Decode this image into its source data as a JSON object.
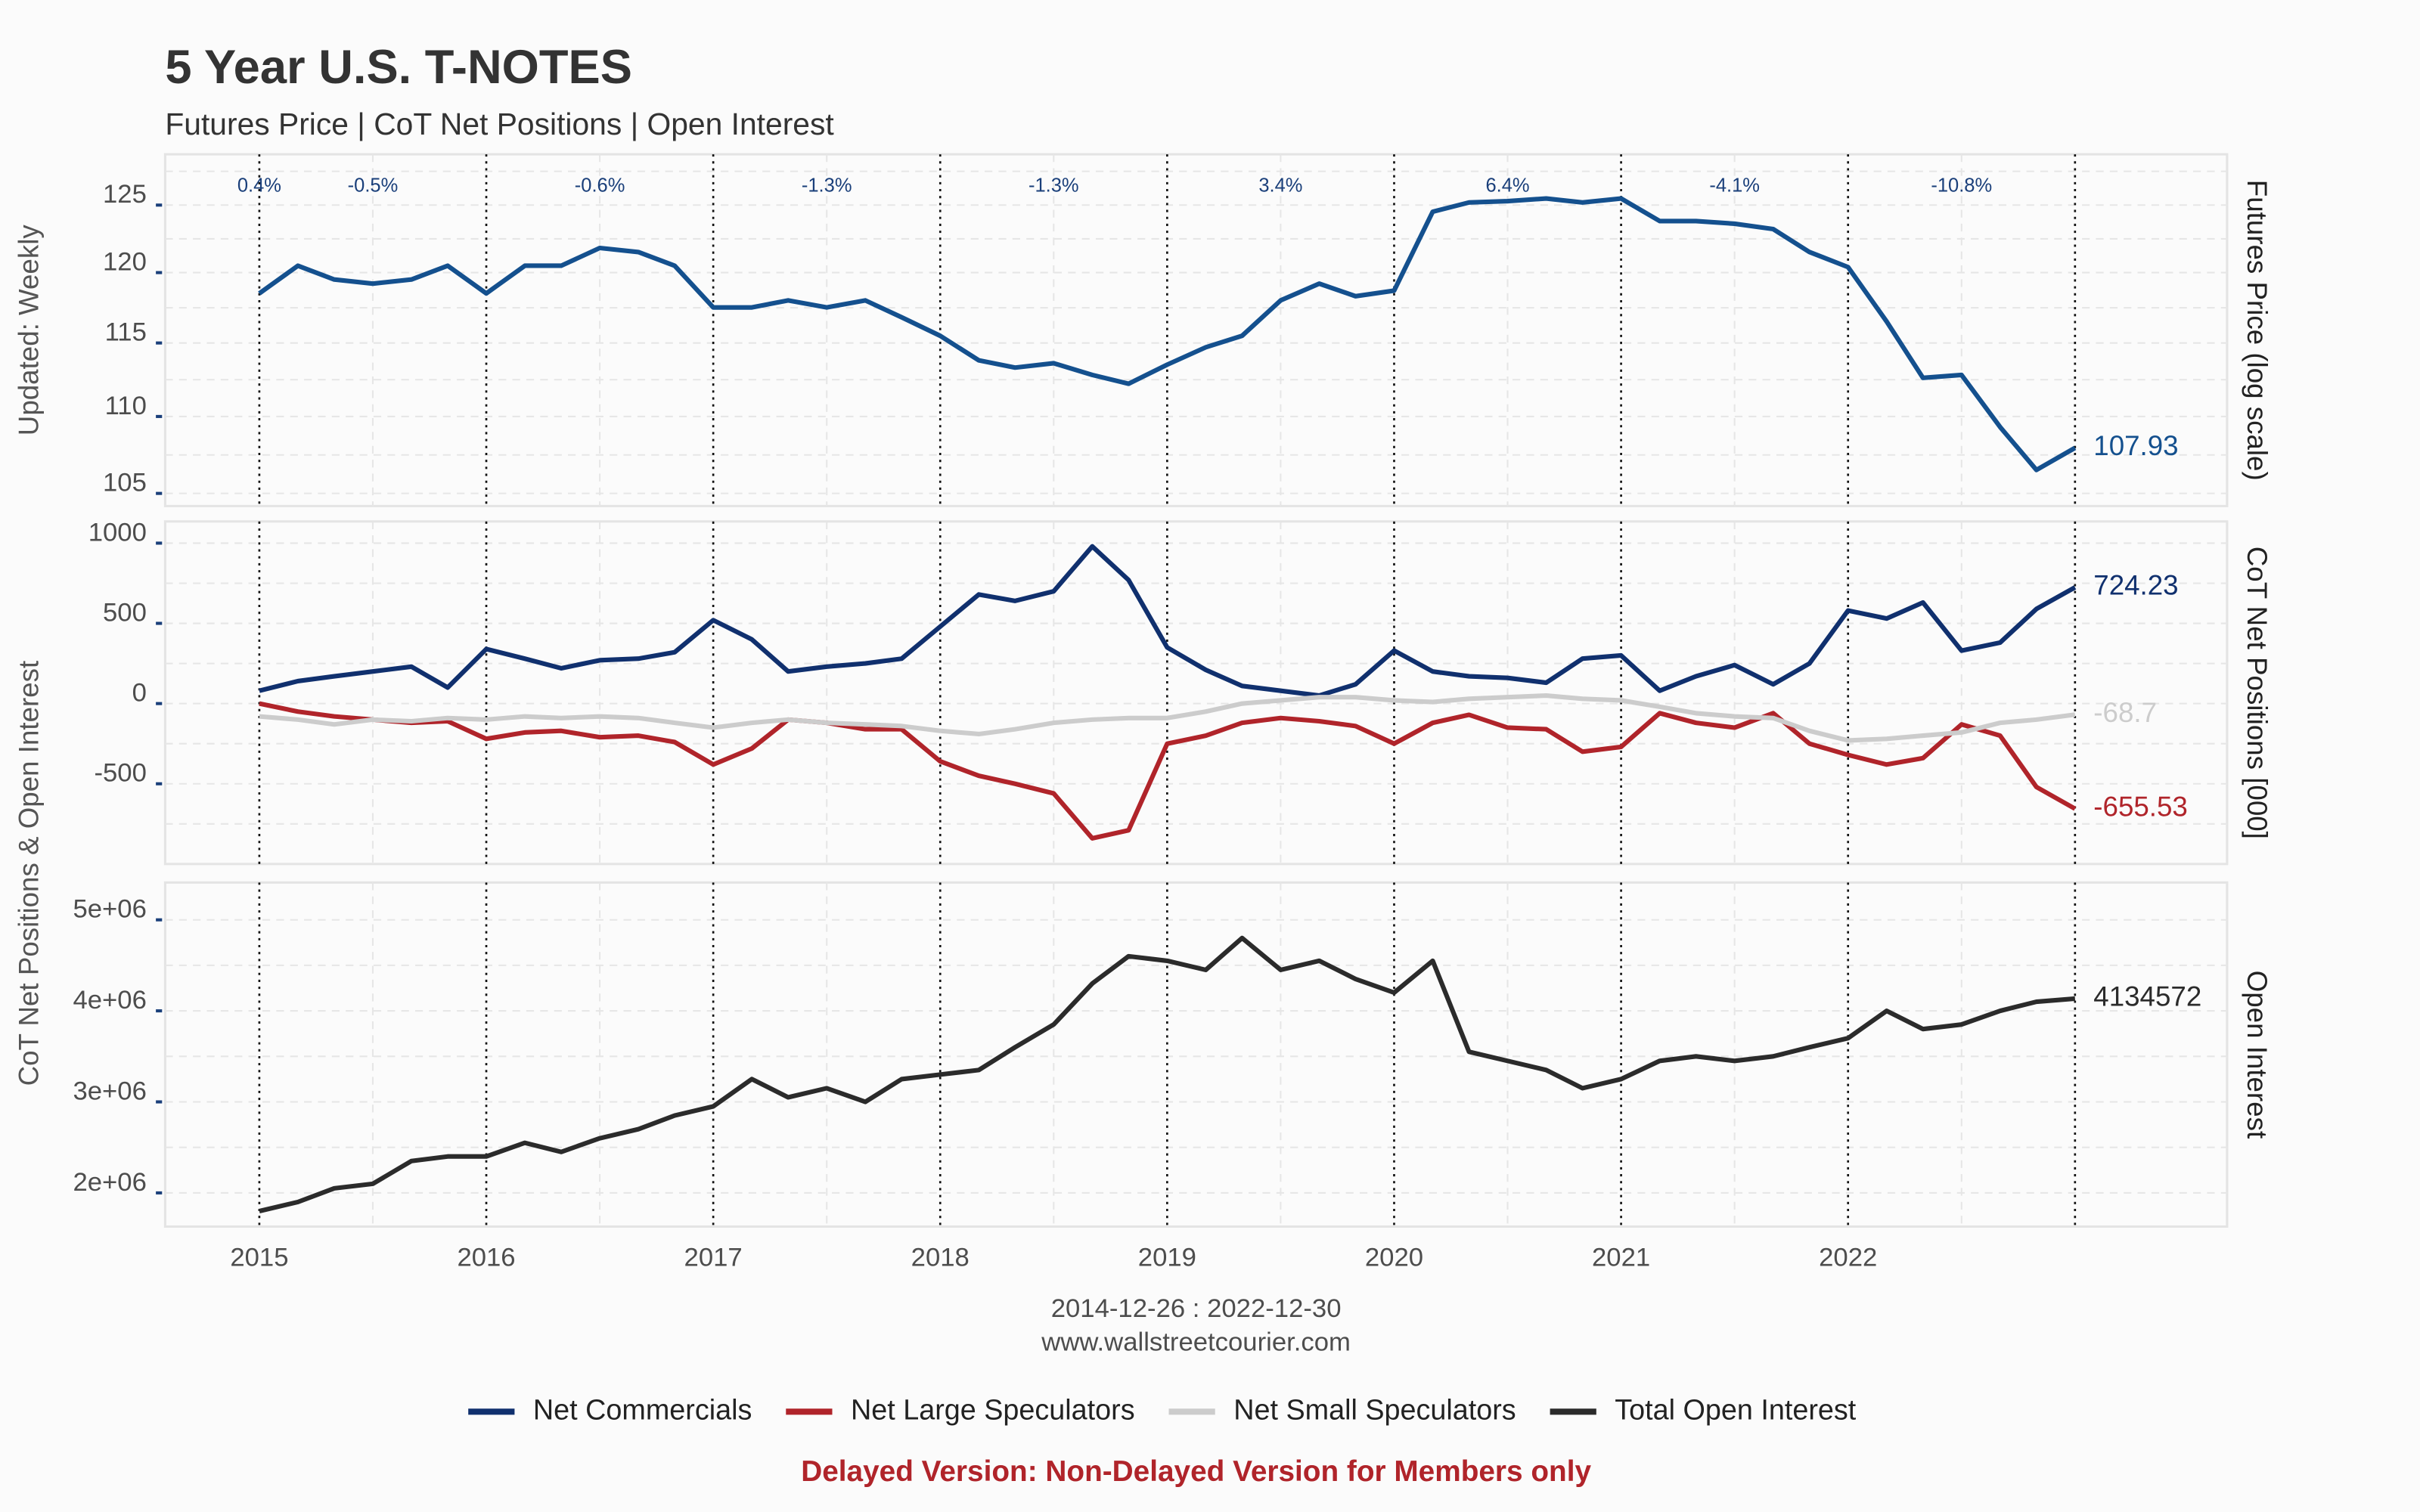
{
  "title": "5 Year U.S. T-NOTES",
  "subtitle": "Futures Price | CoT Net Positions | Open Interest",
  "side_labels": [
    "Updated: Weekly",
    "CoT Net Positions & Open Interest"
  ],
  "date_range": "2014-12-26 : 2022-12-30",
  "source": "www.wallstreetcourier.com",
  "notice": "Delayed Version: Non-Delayed Version for Members only",
  "chart_data": [
    {
      "type": "line",
      "y_label": "Futures Price (log scale)",
      "log_scale": true,
      "grid": true,
      "x": [
        2015,
        2015.17,
        2015.33,
        2015.5,
        2015.67,
        2015.83,
        2016,
        2016.17,
        2016.33,
        2016.5,
        2016.67,
        2016.83,
        2017,
        2017.17,
        2017.33,
        2017.5,
        2017.67,
        2017.83,
        2018,
        2018.17,
        2018.33,
        2018.5,
        2018.67,
        2018.83,
        2019,
        2019.17,
        2019.33,
        2019.5,
        2019.67,
        2019.83,
        2020,
        2020.17,
        2020.33,
        2020.5,
        2020.67,
        2020.83,
        2021,
        2021.17,
        2021.33,
        2021.5,
        2021.67,
        2021.83,
        2022,
        2022.17,
        2022.33,
        2022.5,
        2022.67,
        2022.83,
        2023
      ],
      "xlim": [
        2014.585,
        2023.67
      ],
      "ylim": [
        104.2,
        128.9
      ],
      "yticks": [
        105,
        110,
        115,
        120,
        125
      ],
      "annotations": [
        {
          "x": 2015,
          "text": "0.4%"
        },
        {
          "x": 2015.5,
          "text": "-0.5%"
        },
        {
          "x": 2016.5,
          "text": "-0.6%"
        },
        {
          "x": 2017.5,
          "text": "-1.3%"
        },
        {
          "x": 2018.5,
          "text": "-1.3%"
        },
        {
          "x": 2019.5,
          "text": "3.4%"
        },
        {
          "x": 2020.5,
          "text": "6.4%"
        },
        {
          "x": 2021.5,
          "text": "-4.1%"
        },
        {
          "x": 2022.5,
          "text": "-10.8%"
        }
      ],
      "series": [
        {
          "color": "#14508e",
          "values": [
            118.5,
            120.5,
            119.5,
            119.2,
            119.5,
            120.5,
            118.5,
            120.5,
            120.5,
            121.8,
            121.5,
            120.5,
            117.5,
            117.5,
            118,
            117.5,
            118,
            116.8,
            115.5,
            113.8,
            113.3,
            113.6,
            112.8,
            112.2,
            113.5,
            114.7,
            115.5,
            118,
            119.2,
            118.3,
            118.7,
            124.5,
            125.2,
            125.3,
            125.5,
            125.2,
            125.5,
            123.8,
            123.8,
            123.6,
            123.2,
            121.5,
            120.4,
            116.5,
            112.6,
            112.8,
            109.3,
            106.5,
            107.93
          ]
        }
      ]
    },
    {
      "type": "line",
      "y_label": "CoT Net Positions [000]",
      "grid": true,
      "x": [
        2015,
        2015.17,
        2015.33,
        2015.5,
        2015.67,
        2015.83,
        2016,
        2016.17,
        2016.33,
        2016.5,
        2016.67,
        2016.83,
        2017,
        2017.17,
        2017.33,
        2017.5,
        2017.67,
        2017.83,
        2018,
        2018.17,
        2018.33,
        2018.5,
        2018.67,
        2018.83,
        2019,
        2019.17,
        2019.33,
        2019.5,
        2019.67,
        2019.83,
        2020,
        2020.17,
        2020.33,
        2020.5,
        2020.67,
        2020.83,
        2021,
        2021.17,
        2021.33,
        2021.5,
        2021.67,
        2021.83,
        2022,
        2022.17,
        2022.33,
        2022.5,
        2022.67,
        2022.83,
        2023
      ],
      "xlim": [
        2014.585,
        2023.67
      ],
      "ylim": [
        -1000,
        1135
      ],
      "yticks": [
        -500,
        0,
        500,
        1000
      ],
      "series": [
        {
          "name": "Net Commercials",
          "color": "#10306e",
          "values": [
            80,
            140,
            170,
            200,
            230,
            100,
            340,
            280,
            220,
            270,
            280,
            320,
            520,
            400,
            200,
            230,
            250,
            280,
            480,
            680,
            640,
            700,
            980,
            770,
            350,
            210,
            110,
            80,
            50,
            120,
            330,
            200,
            170,
            160,
            130,
            280,
            300,
            80,
            170,
            240,
            120,
            250,
            580,
            530,
            630,
            330,
            380,
            590,
            724.23
          ]
        },
        {
          "name": "Net Large Speculators",
          "color": "#b0242a",
          "values": [
            0,
            -50,
            -80,
            -100,
            -120,
            -110,
            -220,
            -180,
            -170,
            -210,
            -200,
            -240,
            -380,
            -280,
            -100,
            -120,
            -160,
            -160,
            -360,
            -450,
            -500,
            -560,
            -840,
            -790,
            -250,
            -200,
            -120,
            -90,
            -110,
            -140,
            -250,
            -120,
            -70,
            -150,
            -160,
            -300,
            -270,
            -60,
            -120,
            -150,
            -60,
            -250,
            -320,
            -380,
            -340,
            -130,
            -200,
            -520,
            -655.53
          ]
        },
        {
          "name": "Net Small Speculators",
          "color": "#cccccc",
          "values": [
            -80,
            -100,
            -130,
            -100,
            -110,
            -90,
            -100,
            -80,
            -90,
            -80,
            -90,
            -120,
            -150,
            -120,
            -100,
            -120,
            -130,
            -140,
            -170,
            -190,
            -160,
            -120,
            -100,
            -90,
            -90,
            -50,
            0,
            20,
            40,
            40,
            20,
            10,
            30,
            40,
            50,
            30,
            20,
            -20,
            -60,
            -80,
            -90,
            -170,
            -230,
            -220,
            -200,
            -180,
            -120,
            -100,
            -68.7
          ]
        }
      ]
    },
    {
      "type": "line",
      "y_label": "Open Interest",
      "grid": true,
      "x": [
        2015,
        2015.17,
        2015.33,
        2015.5,
        2015.67,
        2015.83,
        2016,
        2016.17,
        2016.33,
        2016.5,
        2016.67,
        2016.83,
        2017,
        2017.17,
        2017.33,
        2017.5,
        2017.67,
        2017.83,
        2018,
        2018.17,
        2018.33,
        2018.5,
        2018.67,
        2018.83,
        2019,
        2019.17,
        2019.33,
        2019.5,
        2019.67,
        2019.83,
        2020,
        2020.17,
        2020.33,
        2020.5,
        2020.67,
        2020.83,
        2021,
        2021.17,
        2021.33,
        2021.5,
        2021.67,
        2021.83,
        2022,
        2022.17,
        2022.33,
        2022.5,
        2022.67,
        2022.83,
        2023
      ],
      "xlim": [
        2014.585,
        2023.67
      ],
      "xticks": [
        2015,
        2016,
        2017,
        2018,
        2019,
        2020,
        2021,
        2022
      ],
      "ylim": [
        1630000,
        5410000
      ],
      "yticks": [
        {
          "value": 2000000,
          "label": "2e+06"
        },
        {
          "value": 3000000,
          "label": "3e+06"
        },
        {
          "value": 4000000,
          "label": "4e+06"
        },
        {
          "value": 5000000,
          "label": "5e+06"
        }
      ],
      "series": [
        {
          "name": "Total Open Interest",
          "color": "#2b2b2b",
          "values": [
            1800000,
            1900000,
            2050000,
            2100000,
            2350000,
            2400000,
            2400000,
            2550000,
            2450000,
            2600000,
            2700000,
            2850000,
            2950000,
            3250000,
            3050000,
            3150000,
            3000000,
            3250000,
            3300000,
            3350000,
            3600000,
            3850000,
            4300000,
            4600000,
            4550000,
            4450000,
            4800000,
            4450000,
            4550000,
            4350000,
            4200000,
            4550000,
            3550000,
            3450000,
            3350000,
            3150000,
            3250000,
            3450000,
            3500000,
            3450000,
            3500000,
            3600000,
            3700000,
            4000000,
            3800000,
            3850000,
            4000000,
            4100000,
            4134572
          ]
        }
      ]
    }
  ]
}
